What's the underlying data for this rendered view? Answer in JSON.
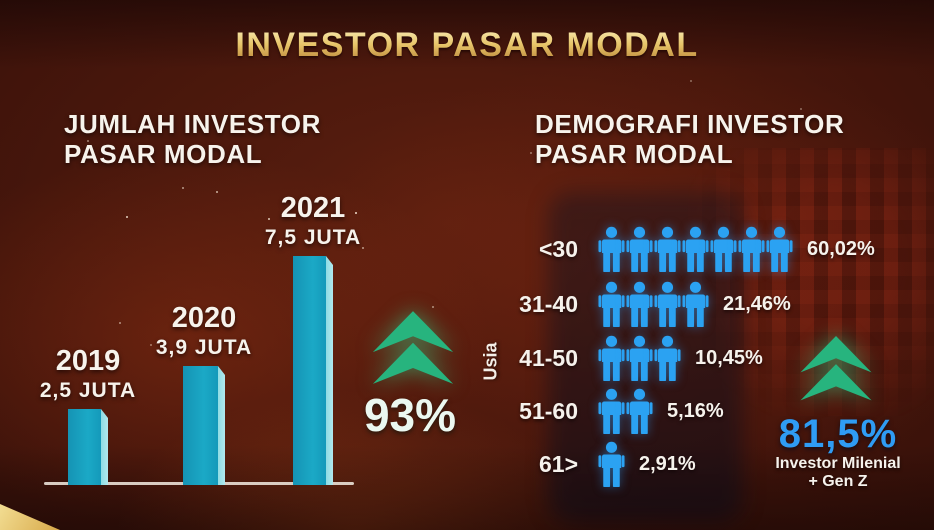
{
  "title": "INVESTOR PASAR MODAL",
  "left_panel": {
    "heading": [
      "JUMLAH INVESTOR",
      "PASAR MODAL"
    ],
    "growth_value": "93%"
  },
  "right_panel": {
    "heading": [
      "DEMOGRAFI INVESTOR",
      "PASAR MODAL"
    ],
    "axis_label": "Usia",
    "growth_value": "81,5%",
    "growth_caption": [
      "Investor Milenial",
      "+ Gen Z"
    ]
  },
  "chart_data": [
    {
      "type": "bar",
      "title": "JUMLAH INVESTOR PASAR MODAL",
      "categories": [
        "2019",
        "2020",
        "2021"
      ],
      "values": [
        2.5,
        3.9,
        7.5
      ],
      "unit": "juta",
      "value_labels": [
        "2,5 JUTA",
        "3,9 JUTA",
        "7,5 JUTA"
      ],
      "annotation": "93%",
      "ylim": [
        0,
        8
      ],
      "grid": false,
      "bar_color": "#1BA9C6"
    },
    {
      "type": "bar",
      "style": "pictogram",
      "orientation": "horizontal",
      "title": "DEMOGRAFI INVESTOR PASAR MODAL",
      "ylabel": "Usia",
      "categories": [
        "<30",
        "31-40",
        "41-50",
        "51-60",
        "61>"
      ],
      "values": [
        60.02,
        21.46,
        10.45,
        5.16,
        2.91
      ],
      "value_labels": [
        "60,02%",
        "21,46%",
        "10,45%",
        "5,16%",
        "2,91%"
      ],
      "icon_counts": [
        7,
        4,
        3,
        2,
        1
      ],
      "annotation": "81,5%",
      "annotation_caption": "Investor Milenial + Gen Z",
      "icon_color": "#2BA2F2"
    }
  ],
  "colors": {
    "accent_cyan": "#1BA9C6",
    "accent_cyan_light": "#8FDCE4",
    "icon_blue": "#2BA2F2",
    "growth_green": "#27B47E",
    "growth_blue": "#2F9CF4",
    "title_gold": "#E3BA5C",
    "text_white": "#F6F2EC"
  }
}
